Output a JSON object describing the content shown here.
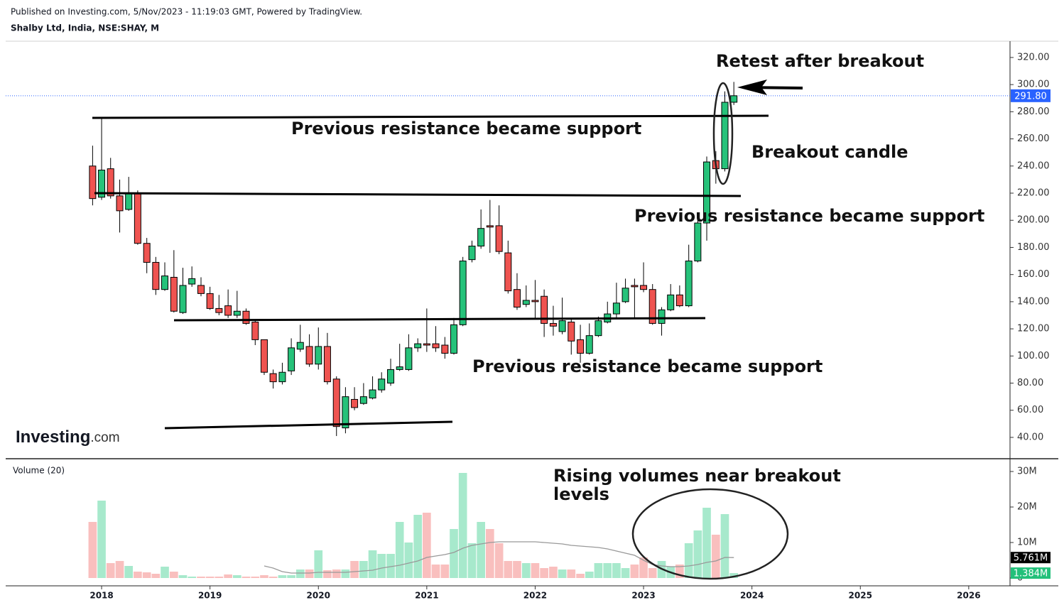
{
  "header": {
    "published": "Published on Investing.com, 5/Nov/2023 - 11:19:03 GMT, Powered by TradingView."
  },
  "logo": {
    "brand": "Investing",
    "suffix": ".com"
  },
  "annotations": [
    "Retest after breakout",
    "Previous resistance became support",
    "Breakout candle",
    "Previous resistance became support",
    "Previous resistance became support"
  ],
  "volume_annotation": [
    "Rising volumes near breakout",
    "levels"
  ],
  "chart_data": [
    {
      "type": "candlestick",
      "title": "Shalby Ltd, India, NSE:SHAY, M",
      "x": [
        2017.917,
        2018,
        2018.083,
        2018.167,
        2018.25,
        2018.333,
        2018.417,
        2018.5,
        2018.583,
        2018.667,
        2018.75,
        2018.833,
        2018.917,
        2019,
        2019.083,
        2019.167,
        2019.25,
        2019.333,
        2019.417,
        2019.5,
        2019.583,
        2019.667,
        2019.75,
        2019.833,
        2019.917,
        2020,
        2020.083,
        2020.167,
        2020.25,
        2020.333,
        2020.417,
        2020.5,
        2020.583,
        2020.667,
        2020.75,
        2020.833,
        2020.917,
        2021,
        2021.083,
        2021.167,
        2021.25,
        2021.333,
        2021.417,
        2021.5,
        2021.583,
        2021.667,
        2021.75,
        2021.833,
        2021.917,
        2022,
        2022.083,
        2022.167,
        2022.25,
        2022.333,
        2022.417,
        2022.5,
        2022.583,
        2022.667,
        2022.75,
        2022.833,
        2022.917,
        2023,
        2023.083,
        2023.167,
        2023.25,
        2023.333,
        2023.417,
        2023.5,
        2023.583,
        2023.667,
        2023.75,
        2023.833
      ],
      "open": [
        240,
        217,
        238,
        218,
        208,
        220,
        183,
        169,
        149,
        158,
        132,
        153,
        152,
        146,
        135,
        137,
        130,
        133,
        125,
        112,
        87,
        81,
        89,
        105,
        107,
        94,
        107,
        83,
        47,
        68,
        65,
        69,
        75,
        80,
        90,
        90,
        106,
        109,
        109,
        108,
        102,
        123,
        171,
        181,
        196,
        196,
        176,
        149,
        138,
        141,
        144,
        124,
        118,
        125,
        112,
        102,
        115,
        125,
        131,
        140,
        152,
        152,
        149,
        124,
        134,
        145,
        137,
        170,
        198,
        244,
        238,
        287
      ],
      "high": [
        255,
        275,
        246,
        230,
        232,
        222,
        187,
        173,
        169,
        178,
        165,
        166,
        158,
        151,
        145,
        149,
        148,
        135,
        127,
        112,
        90,
        95,
        113,
        123,
        116,
        121,
        117,
        85,
        77,
        77,
        80,
        85,
        88,
        98,
        109,
        116,
        113,
        135,
        122,
        114,
        128,
        173,
        185,
        208,
        215,
        211,
        185,
        161,
        152,
        156,
        149,
        137,
        143,
        128,
        123,
        124,
        129,
        140,
        154,
        157,
        157,
        169,
        153,
        136,
        153,
        152,
        182,
        203,
        247,
        251,
        295,
        302
      ],
      "low": [
        211,
        215,
        216,
        191,
        207,
        182,
        161,
        145,
        148,
        132,
        131,
        151,
        144,
        134,
        130,
        128,
        128,
        123,
        108,
        86,
        76,
        79,
        86,
        103,
        92,
        90,
        79,
        41,
        43,
        60,
        64,
        68,
        73,
        78,
        89,
        89,
        103,
        103,
        103,
        98,
        101,
        122,
        169,
        179,
        176,
        175,
        146,
        134,
        136,
        127,
        114,
        115,
        116,
        101,
        95,
        101,
        114,
        124,
        128,
        139,
        128,
        147,
        123,
        115,
        133,
        136,
        136,
        169,
        185,
        227,
        236,
        285
      ],
      "close": [
        216,
        237,
        218,
        207,
        220,
        183,
        169,
        149,
        159,
        133,
        152,
        157,
        146,
        135,
        132,
        130,
        133,
        124,
        112,
        88,
        81,
        88,
        106,
        110,
        94,
        107,
        81,
        48,
        70,
        62,
        70,
        75,
        83,
        90,
        92,
        106,
        109,
        108,
        106,
        102,
        123,
        170,
        181,
        194,
        195,
        177,
        148,
        136,
        141,
        140,
        124,
        122,
        126,
        111,
        102,
        115,
        126,
        131,
        139,
        150,
        151,
        149,
        124,
        134,
        145,
        137,
        170,
        198,
        243,
        238,
        287,
        291.8
      ],
      "up_color": "#26c27a",
      "down_color": "#ef5350",
      "last_price": {
        "value": 291.8,
        "label": "291.80"
      },
      "last_price_color": "#2962ff",
      "xlim": [
        2017.115,
        2026.381
      ],
      "xticks": [
        2018,
        2019,
        2020,
        2021,
        2022,
        2023,
        2024,
        2025,
        2026
      ],
      "ylim": [
        24.8,
        332.0
      ],
      "yticks": [
        {
          "value": 40,
          "label": "40.00"
        },
        {
          "value": 60,
          "label": "60.00"
        },
        {
          "value": 80,
          "label": "80.00"
        },
        {
          "value": 100,
          "label": "100.00"
        },
        {
          "value": 120,
          "label": "120.00"
        },
        {
          "value": 140,
          "label": "140.00"
        },
        {
          "value": 160,
          "label": "160.00"
        },
        {
          "value": 180,
          "label": "180.00"
        },
        {
          "value": 200,
          "label": "200.00"
        },
        {
          "value": 220,
          "label": "220.00"
        },
        {
          "value": 240,
          "label": "240.00"
        },
        {
          "value": 260,
          "label": "260.00"
        },
        {
          "value": 280,
          "label": "280.00"
        },
        {
          "value": 300,
          "label": "300.00"
        },
        {
          "value": 320,
          "label": "320.00"
        }
      ]
    },
    {
      "type": "bar",
      "title": "Volume (20)",
      "values": [
        15.8,
        21.8,
        4.2,
        4.8,
        3.4,
        1.8,
        1.6,
        1.2,
        3.2,
        1.8,
        0.8,
        0.4,
        0.4,
        0.4,
        0.4,
        1,
        0.8,
        0.4,
        0.4,
        0.8,
        0.4,
        0.8,
        0.8,
        2.4,
        2.4,
        7.8,
        2.2,
        2.4,
        2.4,
        4.8,
        4.8,
        7.8,
        6.8,
        6.8,
        15.8,
        10,
        17.8,
        18.4,
        3.8,
        3.8,
        13.8,
        29.6,
        9.8,
        15.8,
        13.8,
        9.8,
        4.8,
        4.8,
        4.2,
        4.2,
        2.8,
        3.2,
        2.4,
        2.4,
        1.2,
        1.8,
        4.2,
        4.2,
        4.2,
        2.8,
        3.8,
        5.8,
        2.8,
        4.8,
        3.2,
        3.8,
        9.8,
        13.4,
        19.8,
        12.2,
        18,
        1.384
      ],
      "ma_values": [
        null,
        null,
        null,
        null,
        null,
        null,
        null,
        null,
        null,
        null,
        null,
        null,
        null,
        null,
        null,
        null,
        null,
        null,
        null,
        3.4,
        2.8,
        1.8,
        1.4,
        1.4,
        1.4,
        1.6,
        1.6,
        1.6,
        1.6,
        1.8,
        2,
        2.2,
        2.8,
        3.2,
        3.6,
        4.2,
        4.8,
        5.8,
        6.2,
        6.6,
        7.2,
        8.4,
        9.2,
        9.6,
        10,
        10.2,
        10.2,
        10.2,
        10.2,
        10.2,
        10,
        9.8,
        9.6,
        9.2,
        9,
        8.8,
        8.6,
        8.2,
        7.6,
        7,
        6.4,
        5,
        3.8,
        3.4,
        3.2,
        3.2,
        3.4,
        3.8,
        4.4,
        4.8,
        5.8,
        5.761
      ],
      "up_color": "#a7e9cc",
      "down_color": "#f9bfbe",
      "ma_color": "#999999",
      "last_labels": [
        {
          "value": 5.761,
          "label": "5.761M",
          "color": "#000000"
        },
        {
          "value": 1.384,
          "label": "1.384M",
          "color": "#22c07a"
        }
      ],
      "ylim": [
        -2.2,
        33.6
      ],
      "yticks": [
        0,
        {
          "value": 10,
          "label": "10M"
        },
        {
          "value": 20,
          "label": "20M"
        },
        {
          "value": 30,
          "label": "30M"
        }
      ]
    }
  ]
}
